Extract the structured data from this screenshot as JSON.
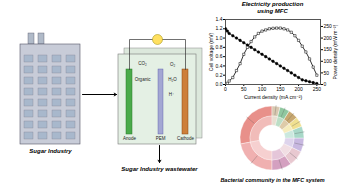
{
  "chart_data": [
    {
      "type": "line",
      "title": "Electricity production\nusing MFC",
      "x": [
        0,
        5,
        10,
        20,
        30,
        40,
        50,
        60,
        70,
        80,
        90,
        100,
        110,
        120,
        130,
        140,
        150,
        160,
        170,
        180,
        190,
        200,
        210,
        220,
        230,
        240,
        250
      ],
      "series": [
        {
          "values": [
            1.2,
            1.15,
            1.1,
            1.05,
            1.0,
            0.95,
            0.9,
            0.85,
            0.8,
            0.75,
            0.7,
            0.65,
            0.6,
            0.55,
            0.5,
            0.45,
            0.4,
            0.35,
            0.3,
            0.25,
            0.2,
            0.15,
            0.1,
            0.08,
            0.06,
            0.04,
            0.02
          ],
          "color": "#000000",
          "marker": "circle",
          "line_style": "solid"
        },
        {
          "values": [
            0,
            5,
            15,
            30,
            60,
            90,
            130,
            160,
            185,
            205,
            220,
            230,
            235,
            240,
            242,
            243,
            243,
            240,
            235,
            225,
            210,
            190,
            165,
            140,
            110,
            75,
            40
          ],
          "color": "#000000",
          "marker": "square",
          "line_style": "solid",
          "axis": "y2"
        }
      ],
      "x_label": "Current density (mA cm⁻²)",
      "y_label": "Cell voltage (mV)",
      "y2_label": "Power density (mW m⁻²)",
      "xlim": [
        0,
        260
      ],
      "xticks": [
        0,
        50,
        100,
        150,
        200,
        250
      ],
      "ylim": [
        0,
        1.4
      ],
      "yticks": [
        {
          "value": 0,
          "label": "0.0"
        },
        0.2,
        0.4,
        0.6,
        0.8,
        {
          "value": 1,
          "label": "1.0"
        },
        1.2,
        1.4
      ],
      "y2lim": [
        0,
        280
      ],
      "y2ticks": [
        0,
        50,
        100,
        150,
        200,
        250
      ],
      "grid": false,
      "annotations": [
        "Sugar Industry",
        "Sugar Industry wastewater",
        "Anode",
        "Cathode",
        "PEM",
        "CO₂",
        "Organic",
        "H⁺",
        "O₂",
        "H₂O"
      ]
    },
    {
      "type": "pie",
      "title": "Bacterial community in the MFC system",
      "values": [
        28,
        22,
        10,
        8,
        7,
        6,
        5,
        5,
        5,
        4
      ],
      "colors": [
        "#e8908a",
        "#f0b0b0",
        "#d4a0c0",
        "#e8c8d0",
        "#c8b8e0",
        "#a8d8c8",
        "#f0e090",
        "#c8a870",
        "#90c8a0",
        "#d8c8b0"
      ]
    }
  ]
}
